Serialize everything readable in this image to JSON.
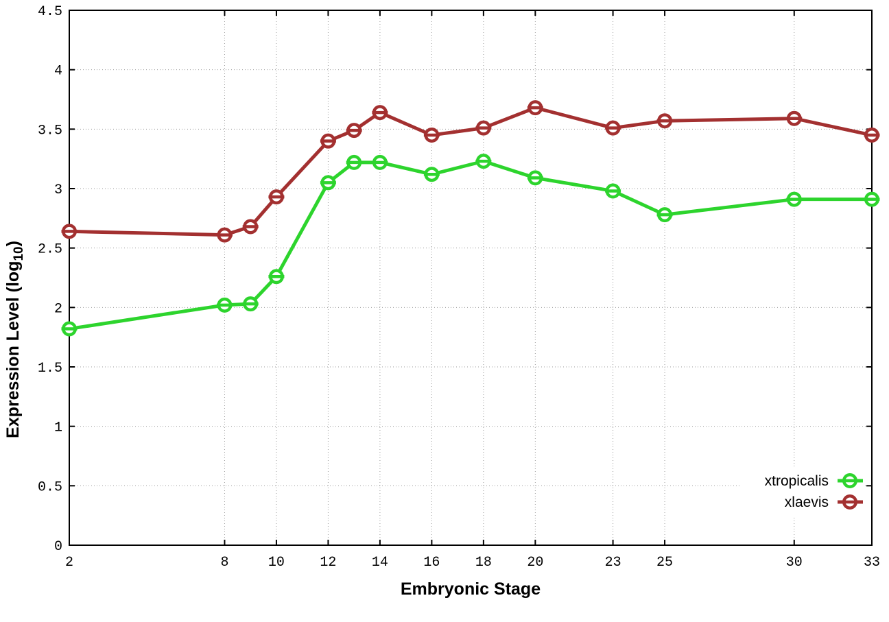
{
  "figure": {
    "background": "#ffffff",
    "border_color": "#000000",
    "grid_color": "#9b9b9b",
    "xlabel": "Embryonic Stage",
    "ylabel": "Expression Level (log10)",
    "ylabel_parts": {
      "pre": "Expression Level (log",
      "sub": "10",
      "post": ")"
    }
  },
  "legend": {
    "position": "bottom-right",
    "entries": [
      {
        "label": "xtropicalis",
        "color": "#2dd42d"
      },
      {
        "label": "xlaevis",
        "color": "#a33030"
      }
    ]
  },
  "chart_data": {
    "type": "line",
    "title": "",
    "xlabel": "Embryonic Stage",
    "ylabel": "Expression Level (log10)",
    "xlim": [
      2,
      33
    ],
    "ylim": [
      0,
      4.5
    ],
    "grid": true,
    "marker": "open-circle-with-horizontal-bar",
    "x": [
      2,
      8,
      9,
      10,
      12,
      13,
      14,
      16,
      18,
      20,
      23,
      25,
      30,
      33
    ],
    "x_tick_values": [
      2,
      8,
      10,
      12,
      14,
      16,
      18,
      20,
      23,
      25,
      30,
      33
    ],
    "x_tick_labels": [
      "2",
      "8",
      "10",
      "12",
      "14",
      "16",
      "18",
      "20",
      "23",
      "25",
      "30",
      "33"
    ],
    "y_tick_values": [
      0,
      0.5,
      1,
      1.5,
      2,
      2.5,
      3,
      3.5,
      4,
      4.5
    ],
    "y_tick_labels": [
      "0",
      "0.5",
      "1",
      "1.5",
      "2",
      "2.5",
      "3",
      "3.5",
      "4",
      "4.5"
    ],
    "series": [
      {
        "name": "xtropicalis",
        "color": "#2dd42d",
        "values": [
          1.82,
          2.02,
          2.03,
          2.26,
          3.05,
          3.22,
          3.22,
          3.12,
          3.23,
          3.09,
          2.98,
          2.78,
          2.91,
          2.91
        ]
      },
      {
        "name": "xlaevis",
        "color": "#a33030",
        "values": [
          2.64,
          2.61,
          2.68,
          2.93,
          3.4,
          3.49,
          3.64,
          3.45,
          3.51,
          3.68,
          3.51,
          3.57,
          3.59,
          3.45
        ]
      }
    ]
  }
}
